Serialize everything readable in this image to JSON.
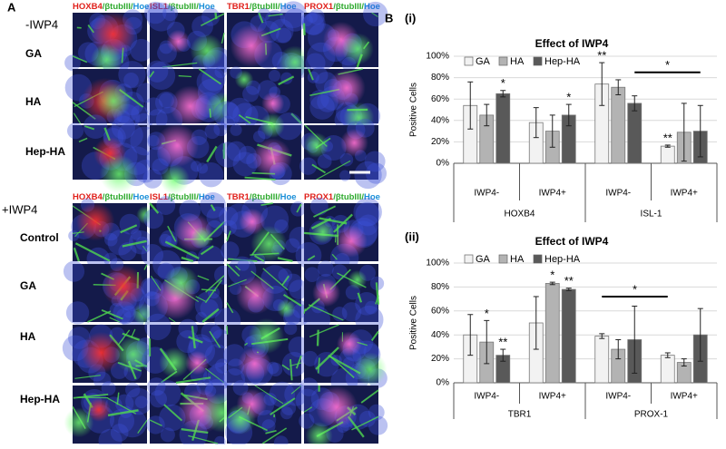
{
  "panel_a": {
    "label": "A",
    "blocks": [
      {
        "title": "-IWP4",
        "headers": [
          [
            "HOXB4",
            "/βtubIII/",
            "Hoe"
          ],
          [
            "ISL1",
            "/βtubIII/",
            "Hoe"
          ],
          [
            "TBR1",
            "/βtubIII/",
            "Hoe"
          ],
          [
            "PROX1",
            "/βtubIII/",
            "Hoe"
          ]
        ],
        "rows": [
          "GA",
          "HA",
          "Hep-HA"
        ]
      },
      {
        "title": "+IWP4",
        "headers": [
          [
            "HOXB4",
            "/βtubIII/",
            "Hoe"
          ],
          [
            "ISL1",
            "/βtubIII/",
            "Hoe"
          ],
          [
            "TBR1",
            "/βtubIII/",
            "Hoe"
          ],
          [
            "PROX1",
            "/βtubIII/",
            "Hoe"
          ]
        ],
        "rows": [
          "Control",
          "GA",
          "HA",
          "Hep-HA"
        ]
      }
    ]
  },
  "panel_b": {
    "label": "B",
    "sublabels": [
      "(i)",
      "(ii)"
    ]
  },
  "chart_data": [
    {
      "type": "bar",
      "title": "Effect of IWP4",
      "y_label": "Positive Cells",
      "categories": [
        "IWP4-",
        "IWP4+",
        "IWP4-",
        "IWP4+"
      ],
      "groups": [
        "HOXB4",
        "ISL-1"
      ],
      "ylim": [
        0,
        100
      ],
      "yticks": [
        {
          "value": 0,
          "label": "0%"
        },
        {
          "value": 20,
          "label": "20%"
        },
        {
          "value": 40,
          "label": "40%"
        },
        {
          "value": 60,
          "label": "60%"
        },
        {
          "value": 80,
          "label": "80%"
        },
        {
          "value": 100,
          "label": "100%"
        }
      ],
      "grid": true,
      "series": [
        {
          "name": "GA",
          "color": "#f2f2f2",
          "values": [
            54,
            38,
            74,
            16
          ],
          "errors": [
            22,
            14,
            20,
            1
          ],
          "annotations": [
            null,
            null,
            "**",
            "**"
          ]
        },
        {
          "name": "HA",
          "color": "#b3b3b3",
          "values": [
            45,
            30,
            71,
            29
          ],
          "errors": [
            10,
            15,
            7,
            27
          ],
          "annotations": [
            null,
            null,
            null,
            null
          ]
        },
        {
          "name": "Hep-HA",
          "color": "#595959",
          "values": [
            65,
            45,
            56,
            30
          ],
          "errors": [
            3,
            10,
            7,
            24
          ],
          "annotations": [
            "*",
            "*",
            null,
            null
          ]
        }
      ],
      "bracket": {
        "label": "*",
        "value": 85
      }
    },
    {
      "type": "bar",
      "title": "Effect of IWP4",
      "y_label": "Positive Cells",
      "categories": [
        "IWP4-",
        "IWP4+",
        "IWP4-",
        "IWP4+"
      ],
      "groups": [
        "TBR1",
        "PROX-1"
      ],
      "ylim": [
        0,
        100
      ],
      "yticks": [
        {
          "value": 0,
          "label": "0%"
        },
        {
          "value": 20,
          "label": "20%"
        },
        {
          "value": 40,
          "label": "40%"
        },
        {
          "value": 60,
          "label": "60%"
        },
        {
          "value": 80,
          "label": "80%"
        },
        {
          "value": 100,
          "label": "100%"
        }
      ],
      "grid": true,
      "series": [
        {
          "name": "GA",
          "color": "#f2f2f2",
          "values": [
            40,
            50,
            39,
            23
          ],
          "errors": [
            17,
            22,
            2,
            2
          ],
          "annotations": [
            null,
            null,
            null,
            null
          ]
        },
        {
          "name": "HA",
          "color": "#b3b3b3",
          "values": [
            34,
            83,
            28,
            17
          ],
          "errors": [
            18,
            1,
            8,
            3
          ],
          "annotations": [
            "*",
            "*",
            null,
            null
          ]
        },
        {
          "name": "Hep-HA",
          "color": "#595959",
          "values": [
            23,
            78,
            36,
            40
          ],
          "errors": [
            5,
            1,
            28,
            22
          ],
          "annotations": [
            "**",
            "**",
            null,
            null
          ]
        }
      ],
      "bracket": {
        "label": "*",
        "value": 72
      }
    }
  ]
}
